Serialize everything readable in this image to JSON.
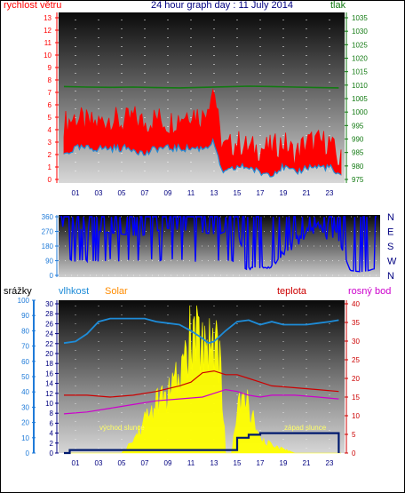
{
  "colors": {
    "wind": "#ff0000",
    "wind_line": "#1e8cd8",
    "pressure": "#127a12",
    "direction": "#0000ff",
    "humidity": "#1e8cd8",
    "solar": "#ffff00",
    "solar_label": "#ff8c00",
    "temperature": "#cc0000",
    "dewpoint": "#cc00cc",
    "rain": "#001a6e",
    "axis_blue": "#1e7ad8",
    "title": "#000080"
  },
  "chart_data": [
    {
      "type": "line",
      "title": "24 hour graph day : 11 July 2014",
      "left_label": "rychlost větru",
      "right_label": "tlak",
      "x_ticks": [
        "01",
        "03",
        "05",
        "07",
        "09",
        "11",
        "13",
        "15",
        "17",
        "19",
        "21",
        "23"
      ],
      "left_axis": {
        "ticks": [
          "0",
          "1",
          "2",
          "3",
          "4",
          "5",
          "6",
          "7",
          "8",
          "9",
          "10",
          "11",
          "12",
          "13"
        ],
        "ylim": [
          0,
          13
        ]
      },
      "right_axis": {
        "ticks": [
          "975",
          "980",
          "985",
          "990",
          "995",
          "1000",
          "1005",
          "1010",
          "1015",
          "1020",
          "1025",
          "1030",
          "1035"
        ],
        "ylim": [
          975,
          1035
        ]
      },
      "series": [
        {
          "name": "rychlost větru",
          "x": [
            0,
            1,
            2,
            3,
            4,
            5,
            6,
            7,
            8,
            9,
            10,
            11,
            12,
            13,
            13.5,
            14,
            15,
            16,
            17,
            18,
            19,
            20,
            21,
            22,
            23,
            23.8
          ],
          "gust": [
            4.5,
            5,
            4.5,
            4.5,
            5,
            4.5,
            5,
            4.5,
            5,
            4.5,
            5,
            5.5,
            5,
            7.5,
            3.5,
            2.5,
            3,
            2.5,
            2.5,
            2.5,
            3,
            2,
            3,
            3,
            3,
            1.5
          ],
          "avg": [
            2,
            2.5,
            2.5,
            2.5,
            2.5,
            2.5,
            2.5,
            2,
            2.5,
            2.5,
            2.5,
            2.5,
            2.5,
            3,
            1,
            0.5,
            1,
            1,
            0.5,
            0.5,
            1,
            0.5,
            1,
            1,
            1,
            0.2
          ]
        },
        {
          "name": "tlak",
          "x": [
            0,
            2,
            4,
            6,
            8,
            10,
            12,
            14,
            16,
            18,
            20,
            22,
            23.8
          ],
          "values": [
            1009.5,
            1009.3,
            1009.2,
            1009.3,
            1009.1,
            1009.0,
            1009.2,
            1009.4,
            1009.6,
            1009.5,
            1009.3,
            1009.1,
            1009.0
          ]
        }
      ]
    },
    {
      "type": "line",
      "title": "",
      "left_axis": {
        "ticks": [
          "0",
          "90",
          "180",
          "270",
          "360"
        ],
        "ylim": [
          0,
          360
        ]
      },
      "right_axis": {
        "ticks": [
          "N",
          "W",
          "S",
          "E",
          "N"
        ]
      },
      "x_ticks": [],
      "series": [
        {
          "name": "",
          "x": [
            0,
            2,
            4,
            6,
            8,
            10,
            12,
            13.5,
            14,
            16,
            16.5,
            17,
            18,
            19,
            20,
            21,
            22,
            23,
            23.8
          ],
          "values": [
            300,
            280,
            260,
            240,
            290,
            270,
            250,
            310,
            40,
            50,
            90,
            150,
            220,
            260,
            280,
            240,
            30,
            20,
            40
          ]
        }
      ]
    },
    {
      "type": "area",
      "title": "",
      "labels": {
        "rain": "srážky",
        "humidity": "vlhkost",
        "solar": "Solar",
        "temperature": "teplota",
        "dewpoint": "rosný bod"
      },
      "annotations": [
        "východ slunce",
        "západ slunce"
      ],
      "x_ticks": [
        "01",
        "03",
        "05",
        "07",
        "09",
        "11",
        "13",
        "15",
        "17",
        "19",
        "21",
        "23"
      ],
      "axes": {
        "rain": {
          "ticks": [
            "0",
            "10",
            "20",
            "30",
            "40",
            "50",
            "60",
            "70",
            "80",
            "90",
            "100"
          ],
          "ylim": [
            0,
            100
          ]
        },
        "humidity": {
          "ticks": [
            "0",
            "2",
            "4",
            "6",
            "8",
            "10",
            "12",
            "14",
            "16",
            "18",
            "20",
            "22",
            "24",
            "26",
            "28",
            "30"
          ],
          "ylim": [
            0,
            30
          ]
        },
        "temperature": {
          "ticks": [
            "0",
            "5",
            "10",
            "15",
            "20",
            "25",
            "30",
            "35",
            "40"
          ],
          "ylim": [
            0,
            40
          ]
        }
      },
      "series": [
        {
          "name": "vlhkost",
          "x": [
            0,
            1,
            2,
            3,
            4,
            5,
            6,
            7,
            8,
            9,
            10,
            11,
            12,
            12.5,
            13,
            14,
            15,
            16,
            17,
            18,
            19,
            20,
            21,
            22,
            23,
            23.8
          ],
          "values": [
            72,
            73,
            78,
            86,
            88,
            88,
            88,
            88,
            86,
            85,
            84,
            80,
            75,
            72,
            73,
            80,
            86,
            87,
            84,
            86,
            84,
            84,
            84,
            85,
            86,
            87
          ]
        },
        {
          "name": "Solar",
          "x": [
            0,
            5,
            6,
            7,
            8,
            9,
            10,
            11,
            11.5,
            12,
            12.5,
            13,
            13.5,
            14,
            14.5,
            15,
            15.5,
            16,
            16.5,
            17,
            18,
            19,
            20,
            21,
            22,
            23,
            23.8
          ],
          "values": [
            0,
            0,
            3,
            8,
            12,
            14,
            18,
            28,
            27,
            26,
            28,
            27,
            25,
            0,
            0,
            10,
            13,
            12,
            7,
            3,
            2,
            1,
            0,
            0,
            0,
            0,
            0
          ]
        },
        {
          "name": "srážky",
          "x": [
            0,
            0.5,
            3,
            4,
            9,
            13,
            14,
            15,
            16,
            17,
            23,
            23.8
          ],
          "values": [
            0,
            2,
            2,
            2,
            2,
            2,
            2,
            10,
            12,
            13,
            13,
            13
          ]
        },
        {
          "name": "teplota",
          "x": [
            0,
            2,
            4,
            6,
            8,
            10,
            11,
            12,
            13,
            14,
            15,
            16,
            17,
            18,
            20,
            22,
            23.8
          ],
          "values": [
            15.5,
            15.5,
            15,
            15.5,
            16.5,
            18,
            19,
            21.5,
            22,
            21,
            21,
            20,
            19,
            18,
            17.5,
            17,
            16.5
          ]
        },
        {
          "name": "rosný bod",
          "x": [
            0,
            2,
            4,
            6,
            8,
            10,
            12,
            13,
            14,
            15,
            16,
            17,
            18,
            20,
            22,
            23.8
          ],
          "values": [
            10.5,
            11,
            12,
            13,
            14,
            14.5,
            15,
            16,
            17,
            16.5,
            15.5,
            15,
            15.5,
            15.5,
            15,
            14.5
          ]
        }
      ]
    }
  ]
}
